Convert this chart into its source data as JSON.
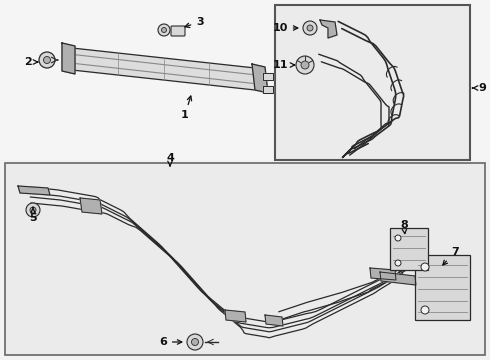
{
  "bg_color": "#f2f2f2",
  "line_color": "#2a2a2a",
  "label_color": "#111111",
  "white": "#ffffff",
  "gray_light": "#d8d8d8",
  "gray_mid": "#b0b0b0",
  "gray_dark": "#888888"
}
